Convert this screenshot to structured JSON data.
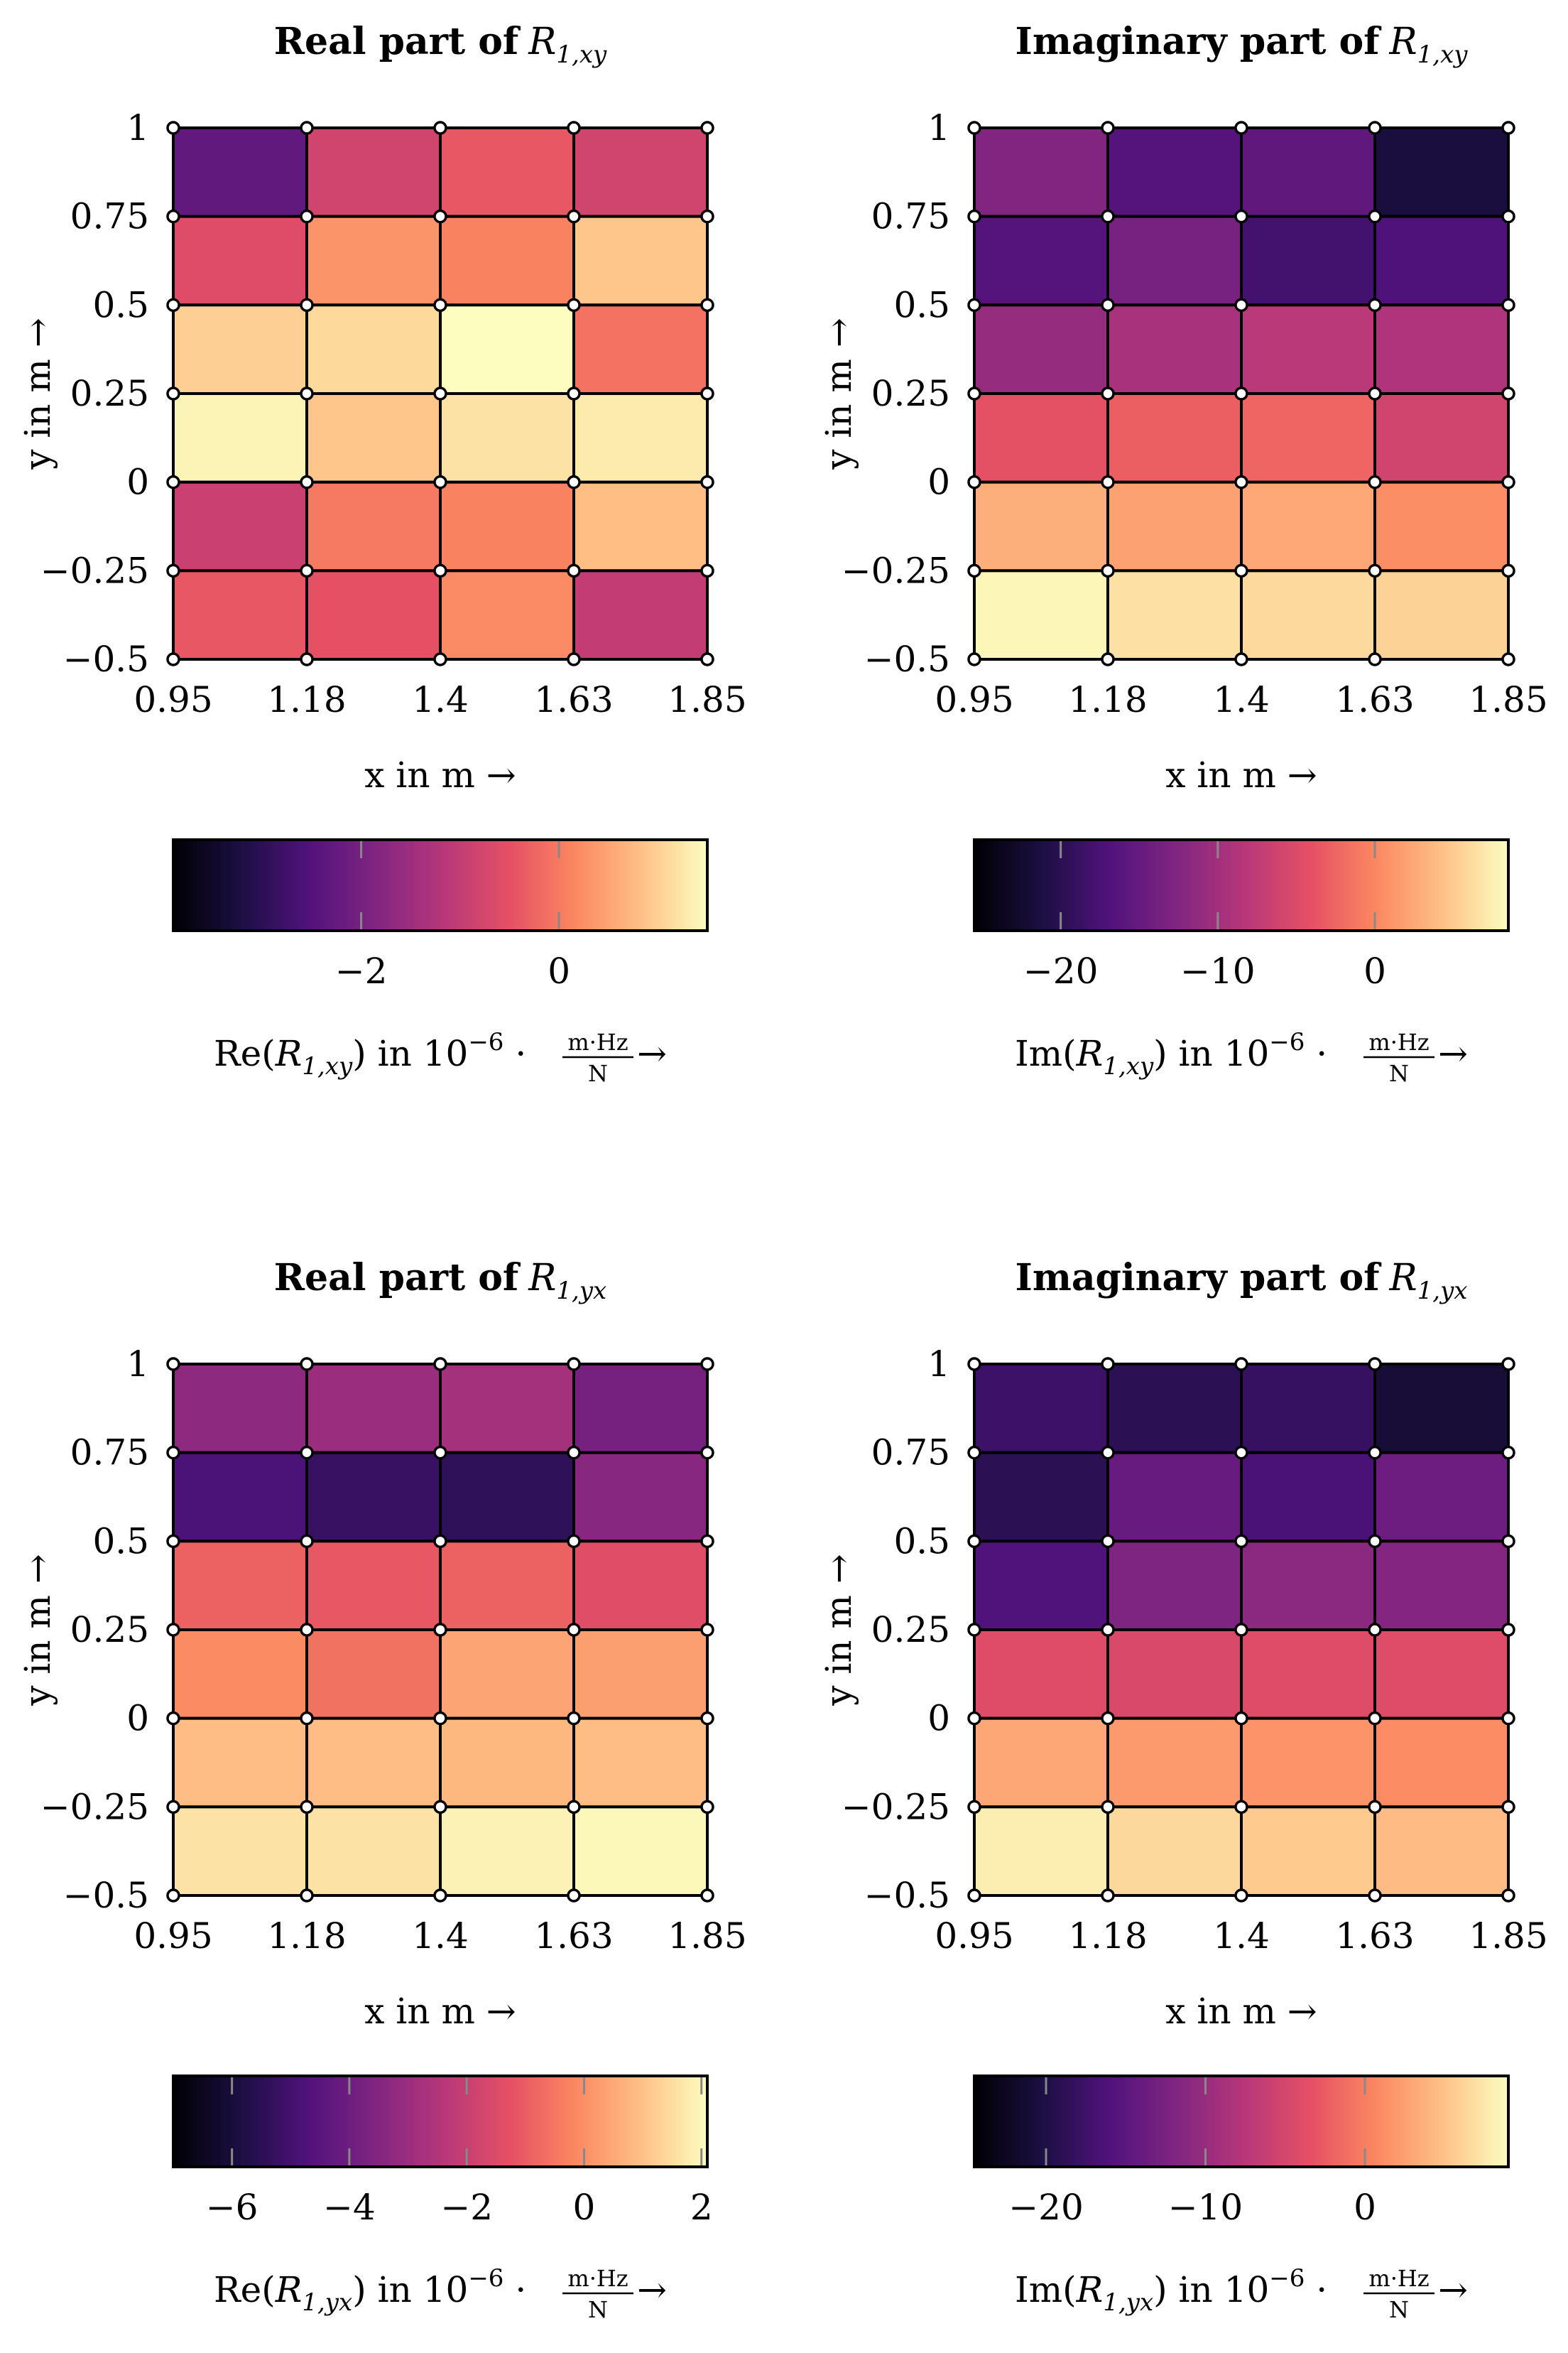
{
  "chart_data": [
    {
      "type": "heatmap",
      "title": "Real part of",
      "title_symbol": "R",
      "title_sub": "1,xy",
      "xlabel": "x in m →",
      "ylabel": "y in m →",
      "x_ticks": [
        "0.95",
        "1.18",
        "1.4",
        "1.63",
        "1.85"
      ],
      "y_ticks": [
        "1",
        "0.75",
        "0.5",
        "0.25",
        "0",
        "−0.25",
        "−0.5"
      ],
      "xlim": [
        0.95,
        1.85
      ],
      "ylim": [
        -0.5,
        1
      ],
      "cells_top_to_bottom": [
        [
          -2.3,
          -0.8,
          -0.4,
          -0.8
        ],
        [
          -0.6,
          0.3,
          0.1,
          0.9
        ],
        [
          1.0,
          1.1,
          1.6,
          -0.1
        ],
        [
          1.4,
          0.9,
          1.2,
          1.3
        ],
        [
          -0.9,
          0.0,
          0.1,
          0.8
        ],
        [
          -0.4,
          -0.5,
          0.2,
          -1.0
        ]
      ],
      "colorbar": {
        "range": [
          -3.9,
          1.5
        ],
        "ticks": [
          -2,
          0
        ],
        "tick_labels": [
          "−2",
          "0"
        ],
        "label_prefix": "Re(",
        "label_symbol": "R",
        "label_sub": "1,xy",
        "label_mid": ") in 10",
        "label_exp": "−6",
        "label_dot": " · ",
        "unit_num": "m·Hz",
        "unit_den": "N",
        "label_arrow": "→"
      }
    },
    {
      "type": "heatmap",
      "title": "Imaginary part of",
      "title_symbol": "R",
      "title_sub": "1,xy",
      "xlabel": "x in m →",
      "ylabel": "y in m →",
      "x_ticks": [
        "0.95",
        "1.18",
        "1.4",
        "1.63",
        "1.85"
      ],
      "y_ticks": [
        "1",
        "0.75",
        "0.5",
        "0.25",
        "0",
        "−0.25",
        "−0.5"
      ],
      "xlim": [
        0.95,
        1.85
      ],
      "ylim": [
        -0.5,
        1
      ],
      "cells_top_to_bottom": [
        [
          -12.5,
          -16.5,
          -15.5,
          -21.5
        ],
        [
          -16.5,
          -13.5,
          -18.0,
          -17.0
        ],
        [
          -11.0,
          -9.5,
          -8.0,
          -9.0
        ],
        [
          -4.0,
          -3.0,
          -2.5,
          -6.0
        ],
        [
          3.0,
          2.0,
          2.5,
          0.5
        ],
        [
          8.0,
          6.5,
          6.0,
          5.5
        ]
      ],
      "colorbar": {
        "range": [
          -25.5,
          8.5
        ],
        "ticks": [
          -20,
          -10,
          0
        ],
        "tick_labels": [
          "−20",
          "−10",
          "0"
        ],
        "label_prefix": "Im(",
        "label_symbol": "R",
        "label_sub": "1,xy",
        "label_mid": ") in 10",
        "label_exp": "−6",
        "label_dot": " · ",
        "unit_num": "m·Hz",
        "unit_den": "N",
        "label_arrow": "→"
      }
    },
    {
      "type": "heatmap",
      "title": "Real part of",
      "title_symbol": "R",
      "title_sub": "1,yx",
      "xlabel": "x in m →",
      "ylabel": "y in m →",
      "x_ticks": [
        "0.95",
        "1.18",
        "1.4",
        "1.63",
        "1.85"
      ],
      "y_ticks": [
        "1",
        "0.75",
        "0.5",
        "0.25",
        "0",
        "−0.25",
        "−0.5"
      ],
      "xlim": [
        0.95,
        1.85
      ],
      "ylim": [
        -0.5,
        1
      ],
      "cells_top_to_bottom": [
        [
          -3.3,
          -3.0,
          -2.8,
          -3.8
        ],
        [
          -4.8,
          -5.2,
          -5.4,
          -3.4
        ],
        [
          -0.9,
          -1.1,
          -0.9,
          -1.4
        ],
        [
          -0.1,
          -0.6,
          0.4,
          0.3
        ],
        [
          0.9,
          0.9,
          0.8,
          0.9
        ],
        [
          1.6,
          1.6,
          1.9,
          2.0
        ]
      ],
      "colorbar": {
        "range": [
          -7,
          2.1
        ],
        "ticks": [
          -6,
          -4,
          -2,
          0,
          2
        ],
        "tick_labels": [
          "−6",
          "−4",
          "−2",
          "0",
          "2"
        ],
        "label_prefix": "Re(",
        "label_symbol": "R",
        "label_sub": "1,yx",
        "label_mid": ") in 10",
        "label_exp": "−6",
        "label_dot": " · ",
        "unit_num": "m·Hz",
        "unit_den": "N",
        "label_arrow": "→"
      }
    },
    {
      "type": "heatmap",
      "title": "Imaginary part of",
      "title_symbol": "R",
      "title_sub": "1,yx",
      "xlabel": "x in m →",
      "ylabel": "y in m →",
      "x_ticks": [
        "0.95",
        "1.18",
        "1.4",
        "1.63",
        "1.85"
      ],
      "y_ticks": [
        "1",
        "0.75",
        "0.5",
        "0.25",
        "0",
        "−0.25",
        "−0.5"
      ],
      "xlim": [
        0.95,
        1.85
      ],
      "ylim": [
        -0.5,
        1
      ],
      "cells_top_to_bottom": [
        [
          -17.5,
          -19.0,
          -18.0,
          -21.0
        ],
        [
          -19.0,
          -14.0,
          -16.5,
          -13.5
        ],
        [
          -16.0,
          -12.0,
          -11.0,
          -11.5
        ],
        [
          -4.0,
          -4.5,
          -4.0,
          -4.0
        ],
        [
          3.0,
          2.0,
          1.5,
          1.0
        ],
        [
          8.0,
          6.5,
          5.5,
          4.5
        ]
      ],
      "colorbar": {
        "range": [
          -24.5,
          9
        ],
        "ticks": [
          -20,
          -10,
          0
        ],
        "tick_labels": [
          "−20",
          "−10",
          "0"
        ],
        "label_prefix": "Im(",
        "label_symbol": "R",
        "label_sub": "1,yx",
        "label_mid": ") in 10",
        "label_exp": "−6",
        "label_dot": " · ",
        "unit_num": "m·Hz",
        "unit_den": "N",
        "label_arrow": "→"
      }
    }
  ]
}
